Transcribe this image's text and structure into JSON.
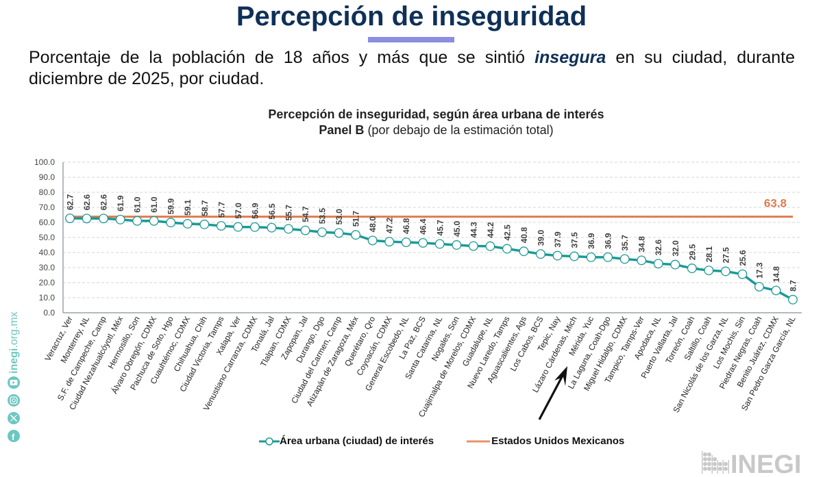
{
  "header": {
    "title": "Percepción de inseguridad",
    "subtitle_before": "Porcentaje de la población de 18 años y más que se sintió ",
    "subtitle_emphasis": "insegura",
    "subtitle_after": " en su ciudad, durante diciembre de 2025, por ciudad."
  },
  "side_bar": {
    "website": "inegi.org.mx",
    "icons": [
      "youtube-icon",
      "instagram-icon",
      "x-icon",
      "facebook-icon"
    ]
  },
  "logo": {
    "text": "INEGI"
  },
  "colors": {
    "series": "#1a9a96",
    "reference": "#e07b4f",
    "title": "#0f3057",
    "accent_bar": "#8a8de0"
  },
  "chart_data": {
    "type": "line",
    "title": "Percepción de inseguridad, según área urbana de interés",
    "subtitle_bold": "Panel B",
    "subtitle_rest": " (por debajo de la estimación total)",
    "xlabel": "",
    "ylabel": "",
    "ylim": [
      0,
      100
    ],
    "yticks": [
      "0.0",
      "10.0",
      "20.0",
      "30.0",
      "40.0",
      "50.0",
      "60.0",
      "70.0",
      "80.0",
      "90.0",
      "100.0"
    ],
    "grid": true,
    "legend_position": "bottom",
    "categories": [
      "Veracruz, Ver",
      "Monterrey, NL",
      "S.F. de Campeche, Camp",
      "Ciudad Nezahualcóyotl, Méx",
      "Hermosillo, Son",
      "Álvaro Obregón, CDMX",
      "Pachuca de Soto, Hgo",
      "Cuauhtémoc, CDMX",
      "Chihuahua, Chih",
      "Ciudad Victoria, Tamps",
      "Xalapa, Ver",
      "Venustiano Carranza, CDMX",
      "Tonalá, Jal",
      "Tlalpan, CDMX",
      "Zapopan, Jal",
      "Durango, Dgo",
      "Ciudad del Carmen, Camp",
      "Atizapán de Zaragoza, Méx",
      "Querétaro, Qro",
      "Coyoacán, CDMX",
      "General Escobedo, NL",
      "La Paz, BCS",
      "Santa Catarina, NL",
      "Nogales, Son",
      "Cuajimalpa de Morelos, CDMX",
      "Guadalupe, NL",
      "Nuevo Laredo, Tamps",
      "Aguascalientes, Ags",
      "Los Cabos, BCS",
      "Tepic, Nay",
      "Lázaro Cárdenas, Mich",
      "Mérida, Yuc",
      "La Laguna, Coah-Dgo",
      "Miguel Hidalgo, CDMX",
      "Tampico, Tamps-Ver",
      "Apodaca, NL",
      "Puerto Vallarta, Jal",
      "Torreón, Coah",
      "Saltillo, Coah",
      "San Nicolás de los Garza, NL",
      "Los Mochis, Sin",
      "Piedras Negras, Coah",
      "Benito Juárez, CDMX",
      "San Pedro Garza García, NL"
    ],
    "series": [
      {
        "name": "Área urbana (ciudad) de interés",
        "values": [
          62.7,
          62.6,
          62.6,
          61.9,
          61.0,
          61.0,
          59.9,
          59.1,
          58.7,
          57.7,
          57.0,
          56.9,
          56.5,
          55.7,
          54.7,
          53.5,
          53.0,
          51.7,
          48.0,
          47.2,
          46.8,
          46.4,
          45.7,
          45.0,
          44.3,
          44.2,
          42.5,
          40.8,
          39.0,
          37.9,
          37.5,
          36.9,
          36.9,
          35.7,
          34.8,
          32.6,
          32.0,
          29.5,
          28.1,
          27.5,
          25.6,
          17.3,
          14.8,
          8.7
        ],
        "labels": [
          "62.7",
          "62.6",
          "62.6",
          "61.9",
          "61.0",
          "61.0",
          "59.9",
          "59.1",
          "58.7",
          "57.7",
          "57.0",
          "56.9",
          "56.5",
          "55.7",
          "54.7",
          "53.5",
          "53.0",
          "51.7",
          "48.0",
          "47.2",
          "46.8",
          "46.4",
          "45.7",
          "45.0",
          "44.3",
          "44.2",
          "42.5",
          "40.8",
          "39.0",
          "37.9",
          "37.5",
          "36.9",
          "36.9",
          "35.7",
          "34.8",
          "32.6",
          "32.0",
          "29.5",
          "28.1",
          "27.5",
          "25.6",
          "17.3",
          "14.8",
          "8.7"
        ]
      },
      {
        "name": "Estados Unidos Mexicanos",
        "value": 63.8,
        "label": "63.8"
      }
    ],
    "annotation": {
      "type": "arrow",
      "points_to": "Lázaro Cárdenas, Mich"
    }
  }
}
